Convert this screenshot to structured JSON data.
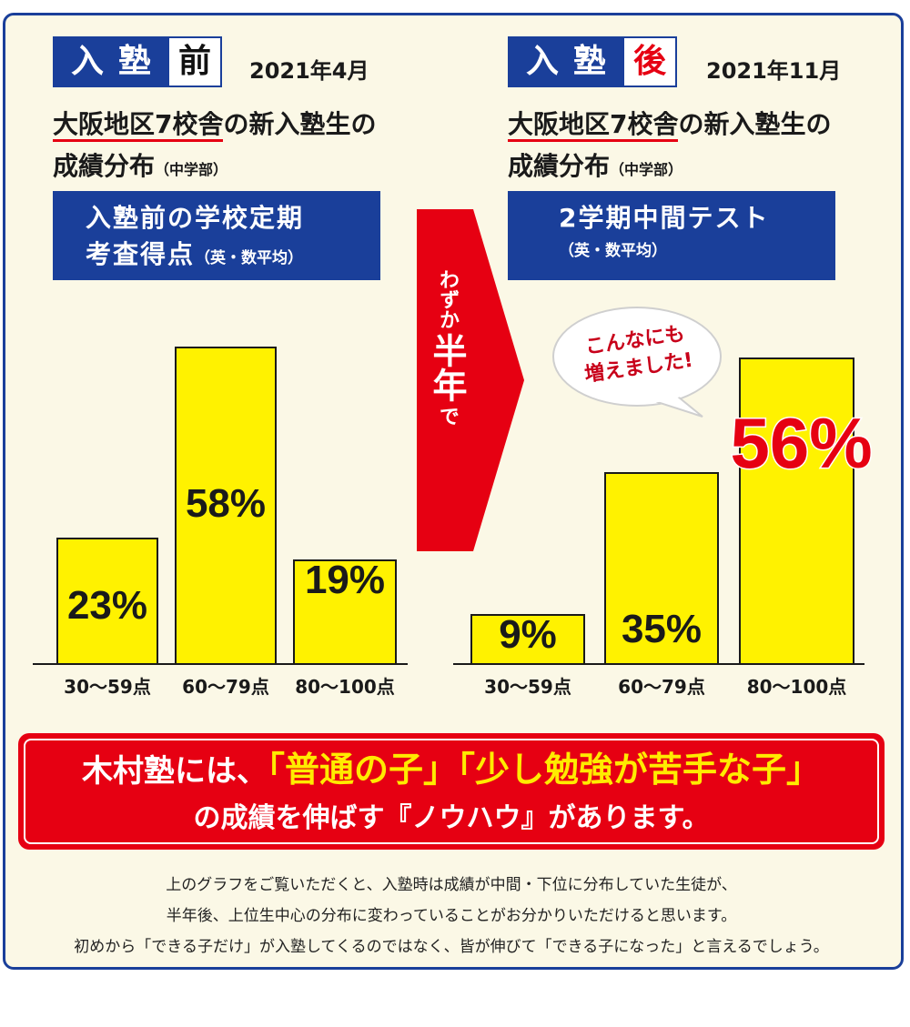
{
  "before": {
    "tag_main": "入塾",
    "tag_last": "前",
    "date": "2021年4月",
    "desc_line1_ul": "大阪地区7校舎",
    "desc_line1_rest": "の新入塾生の",
    "desc_line2": "成績分布",
    "desc_line2_small": "（中学部）",
    "box_line1": "入塾前の学校定期",
    "box_line2": "考査得点",
    "box_line2_small": "（英・数平均）"
  },
  "after": {
    "tag_main": "入塾",
    "tag_last": "後",
    "date": "2021年11月",
    "desc_line1_ul": "大阪地区7校舎",
    "desc_line1_rest": "の新入塾生の",
    "desc_line2": "成績分布",
    "desc_line2_small": "（中学部）",
    "box_line1": "2学期中間テスト",
    "box_line2_small": "（英・数平均）"
  },
  "arrow": {
    "line1": "わずか",
    "line2": "半年",
    "line3": "で"
  },
  "bubble": {
    "line1": "こんなにも",
    "line2": "増えました!"
  },
  "chart_data": [
    {
      "type": "bar",
      "categories": [
        "30～59点",
        "60～79点",
        "80～100点"
      ],
      "values": [
        23,
        58,
        19
      ],
      "labels": [
        "23%",
        "58%",
        "19%"
      ],
      "unit": "%",
      "ylim": [
        0,
        60
      ],
      "bar_color": "#fff200"
    },
    {
      "type": "bar",
      "categories": [
        "30～59点",
        "60～79点",
        "80～100点"
      ],
      "values": [
        9,
        35,
        56
      ],
      "labels": [
        "9%",
        "35%",
        "56%"
      ],
      "unit": "%",
      "ylim": [
        0,
        60
      ],
      "bar_color": "#fff200",
      "highlight_color": "#e60012"
    }
  ],
  "banner": {
    "r1a": "木村塾には、",
    "r1b": "「普通の子」「少し勉強が苦手な子」",
    "r2": "の成績を伸ばす『ノウハウ』があります。"
  },
  "notes": [
    "上のグラフをご覧いただくと、入塾時は成績が中間・下位に分布していた生徒が、",
    "半年後、上位生中心の分布に変わっていることがお分かりいただけると思います。",
    "初めから「できる子だけ」が入塾してくるのではなく、皆が伸びて「できる子になった」と言えるでしょう。"
  ],
  "colors": {
    "navy": "#1a3f9a",
    "red": "#e60012",
    "yellow": "#fff200",
    "bg": "#fbf8e6"
  }
}
